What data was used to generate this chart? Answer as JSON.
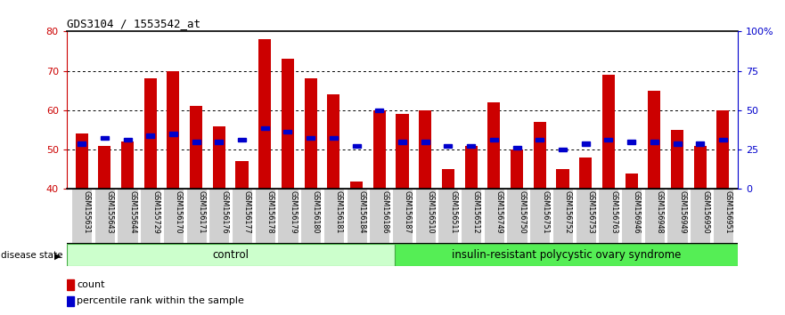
{
  "title": "GDS3104 / 1553542_at",
  "categories": [
    "GSM155631",
    "GSM155643",
    "GSM155644",
    "GSM155729",
    "GSM156170",
    "GSM156171",
    "GSM156176",
    "GSM156177",
    "GSM156178",
    "GSM156179",
    "GSM156180",
    "GSM156181",
    "GSM156184",
    "GSM156186",
    "GSM156187",
    "GSM156510",
    "GSM156511",
    "GSM156512",
    "GSM156749",
    "GSM156750",
    "GSM156751",
    "GSM156752",
    "GSM156753",
    "GSM156763",
    "GSM156946",
    "GSM156948",
    "GSM156949",
    "GSM156950",
    "GSM156951"
  ],
  "bar_values": [
    54,
    51,
    52,
    68,
    70,
    61,
    56,
    47,
    78,
    73,
    68,
    64,
    42,
    60,
    59,
    60,
    45,
    51,
    62,
    50,
    57,
    45,
    48,
    69,
    44,
    65,
    55,
    51,
    60
  ],
  "blue_values": [
    51.5,
    53,
    52.5,
    53.5,
    54,
    52,
    52,
    52.5,
    55.5,
    54.5,
    53,
    53,
    51,
    60,
    52,
    52,
    51,
    51,
    52.5,
    50.5,
    52.5,
    50,
    51.5,
    52.5,
    52,
    52,
    51.5,
    51.5,
    52.5
  ],
  "ymin": 40,
  "ymax": 80,
  "yticks": [
    40,
    50,
    60,
    70,
    80
  ],
  "bar_color": "#cc0000",
  "blue_color": "#0000cc",
  "control_label": "control",
  "disease_label": "insulin-resistant polycystic ovary syndrome",
  "disease_state_label": "disease state",
  "n_control": 14,
  "legend_count_label": "count",
  "legend_pct_label": "percentile rank within the sample",
  "axis_left_color": "#cc0000",
  "axis_right_color": "#0000cc",
  "control_bg": "#ccffcc",
  "disease_bg": "#55ee55",
  "label_bg": "#d0d0d0",
  "pct_labels": [
    "0",
    "25",
    "50",
    "75",
    "100%"
  ],
  "pct_vals": [
    40,
    50,
    60,
    70,
    80
  ]
}
